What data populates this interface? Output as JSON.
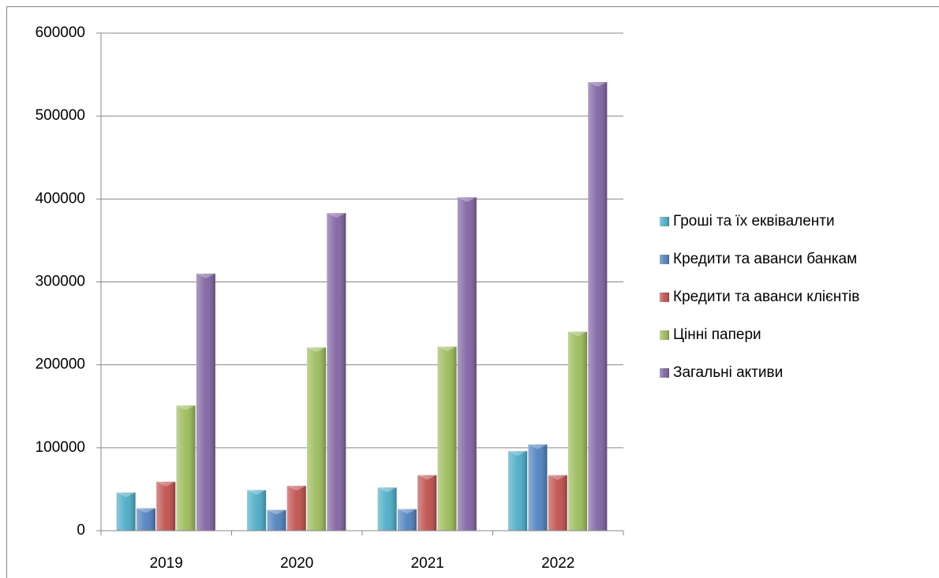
{
  "chart_data": {
    "type": "bar",
    "categories": [
      "2019",
      "2020",
      "2021",
      "2022"
    ],
    "series": [
      {
        "name": "Гроші та їх еквіваленти",
        "color": "#4bacc6",
        "values": [
          46000,
          49000,
          52000,
          96000
        ]
      },
      {
        "name": "Кредити та аванси банкам",
        "color": "#4f81bd",
        "values": [
          27000,
          25000,
          26000,
          104000
        ]
      },
      {
        "name": "Кредити та аванси клієнтів",
        "color": "#c0504d",
        "values": [
          59000,
          54000,
          67000,
          67000
        ]
      },
      {
        "name": "Цінні папери",
        "color": "#9bbb59",
        "values": [
          151000,
          221000,
          222000,
          240000
        ]
      },
      {
        "name": "Загальні активи",
        "color": "#8064a2",
        "values": [
          310000,
          383000,
          402000,
          541000
        ]
      }
    ],
    "ylim": [
      0,
      600000
    ],
    "yticks": [
      0,
      100000,
      200000,
      300000,
      400000,
      500000,
      600000
    ],
    "grid": true,
    "legend": "right"
  }
}
